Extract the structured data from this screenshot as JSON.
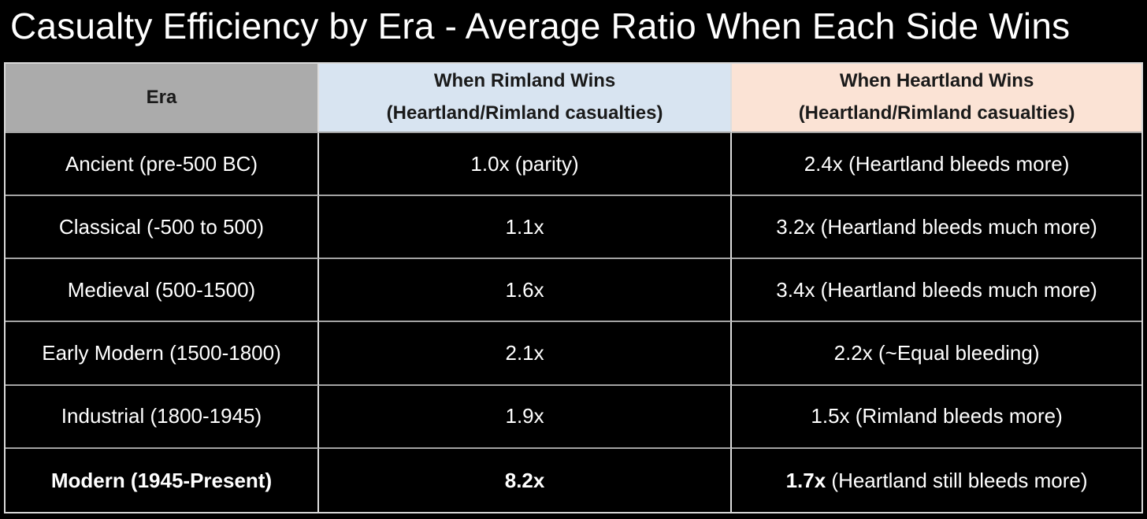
{
  "title": "Casualty Efficiency by Era - Average Ratio When Each Side Wins",
  "colors": {
    "background": "#000000",
    "era_header_bg": "#ABABAB",
    "rimland_header_bg": "#D8E4F1",
    "heartland_header_bg": "#FBE3D5",
    "header_text": "#1A1A1A",
    "body_text": "#FFFFFF",
    "vertical_grid_line": "#DEDEDE",
    "horizontal_grid_line": "#A3A3A3"
  },
  "table": {
    "headers": {
      "era": "Era",
      "rimland_line1": "When Rimland Wins",
      "rimland_line2": "(Heartland/Rimland casualties)",
      "heartland_line1": "When Heartland Wins",
      "heartland_line2": "(Heartland/Rimland casualties)"
    },
    "rows": [
      {
        "era": "Ancient (pre-500 BC)",
        "rimland": "1.0x (parity)",
        "heartland": "2.4x (Heartland bleeds more)"
      },
      {
        "era": "Classical (-500 to 500)",
        "rimland": "1.1x",
        "heartland": "3.2x (Heartland bleeds much more)"
      },
      {
        "era": "Medieval (500-1500)",
        "rimland": "1.6x",
        "heartland": "3.4x (Heartland bleeds much more)"
      },
      {
        "era": "Early Modern (1500-1800)",
        "rimland": "2.1x",
        "heartland": "2.2x (~Equal bleeding)"
      },
      {
        "era": "Industrial (1800-1945)",
        "rimland": "1.9x",
        "heartland": "1.5x (Rimland bleeds more)"
      },
      {
        "era": "Modern (1945-Present)",
        "rimland": "8.2x",
        "heartland_value": "1.7x",
        "heartland_note": " (Heartland still bleeds more)"
      }
    ]
  },
  "chart_data": {
    "type": "table",
    "title": "Casualty Efficiency by Era - Average Ratio When Each Side Wins",
    "columns": [
      "Era",
      "When Rimland Wins (Heartland/Rimland casualties)",
      "When Heartland Wins (Heartland/Rimland casualties)"
    ],
    "categories": [
      "Ancient (pre-500 BC)",
      "Classical (-500 to 500)",
      "Medieval (500-1500)",
      "Early Modern (1500-1800)",
      "Industrial (1800-1945)",
      "Modern (1945-Present)"
    ],
    "series": [
      {
        "name": "When Rimland Wins (Heartland/Rimland casualties)",
        "values": [
          1.0,
          1.1,
          1.6,
          2.1,
          1.9,
          8.2
        ]
      },
      {
        "name": "When Heartland Wins (Heartland/Rimland casualties)",
        "values": [
          2.4,
          3.2,
          3.4,
          2.2,
          1.5,
          1.7
        ]
      }
    ],
    "annotations": [
      "parity",
      "Heartland bleeds more",
      "Heartland bleeds much more",
      "Heartland bleeds much more",
      "~Equal bleeding",
      "Rimland bleeds more",
      "Heartland still bleeds more"
    ]
  }
}
